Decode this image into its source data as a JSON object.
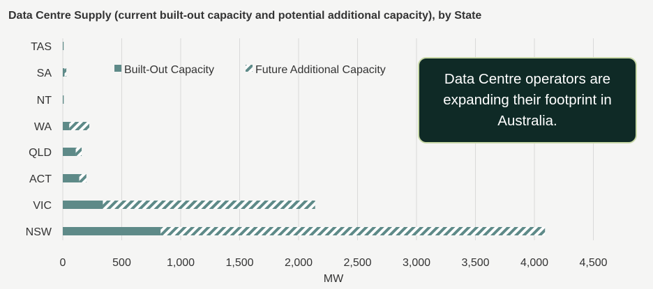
{
  "chart_data": {
    "type": "bar",
    "orientation": "horizontal",
    "stacked": true,
    "title": "Data Centre Supply (current built-out capacity and potential additional capacity), by State",
    "xlabel": "MW",
    "ylabel": "",
    "categories": [
      "TAS",
      "SA",
      "NT",
      "WA",
      "QLD",
      "ACT",
      "VIC",
      "NSW"
    ],
    "series": [
      {
        "name": "Built-Out Capacity",
        "values": [
          5,
          15,
          8,
          55,
          110,
          140,
          340,
          830
        ]
      },
      {
        "name": "Future Additional Capacity",
        "values": [
          0,
          15,
          0,
          170,
          50,
          60,
          1800,
          3260
        ]
      }
    ],
    "xlim": [
      0,
      4500
    ],
    "xticks": [
      0,
      500,
      1000,
      1500,
      2000,
      2500,
      3000,
      3500,
      4000,
      4500
    ],
    "xtick_labels": [
      "0",
      "500",
      "1,000",
      "1,500",
      "2,000",
      "2,500",
      "3,000",
      "3,500",
      "4,000",
      "4,500"
    ],
    "grid": true,
    "legend_position": "top",
    "colors": {
      "built": "#5e8a88",
      "future_stripe": "#5e8a88",
      "grid": "#d9d9d9",
      "callout_bg": "#0f2a26",
      "callout_border": "#c9d9a8"
    },
    "annotation": "Data Centre operators are expanding their footprint in Australia."
  }
}
